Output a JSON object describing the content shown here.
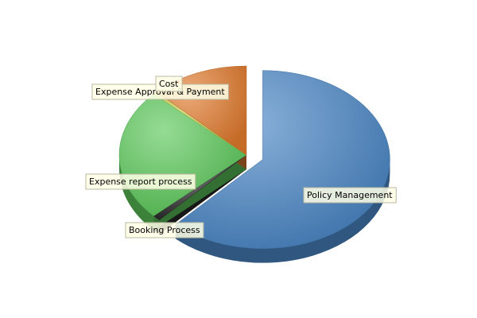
{
  "chart_data": {
    "type": "pie",
    "style": "3d-exploded",
    "legend": "none",
    "title": "",
    "slices": [
      {
        "label": "Policy Management",
        "value": 62,
        "color": "#4A86C5",
        "exploded": true
      },
      {
        "label": "Booking Process",
        "value": 1,
        "color": "#2A2A2A",
        "exploded": false
      },
      {
        "label": "Expense report process",
        "value": 24,
        "color": "#5CC85A",
        "exploded": false
      },
      {
        "label": "Expense Approval & Payment",
        "value": 0.5,
        "color": "#C5CA48",
        "exploded": false
      },
      {
        "label": "Cost",
        "value": 12.5,
        "color": "#E07A2E",
        "exploded": false
      }
    ]
  }
}
